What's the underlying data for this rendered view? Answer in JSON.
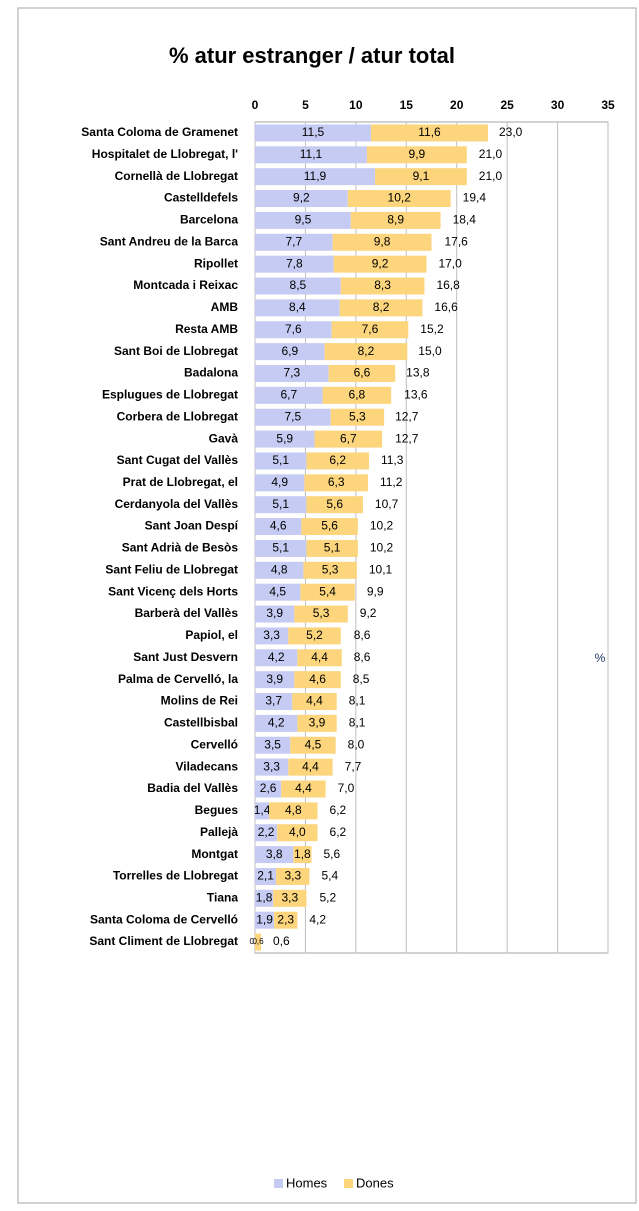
{
  "chart_data": {
    "type": "stacked-bar-horizontal",
    "title": "%  atur estranger / atur total",
    "axis_label": "%",
    "categories": [
      "Santa Coloma de Gramenet",
      "Hospitalet de Llobregat, l'",
      "Cornellà de Llobregat",
      "Castelldefels",
      "Barcelona",
      "Sant Andreu de la Barca",
      "Ripollet",
      "Montcada i Reixac",
      "AMB",
      "Resta AMB",
      "Sant Boi de Llobregat",
      "Badalona",
      "Esplugues de Llobregat",
      "Corbera de Llobregat",
      "Gavà",
      "Sant Cugat del Vallès",
      "Prat de Llobregat, el",
      "Cerdanyola del Vallès",
      "Sant Joan Despí",
      "Sant Adrià de Besòs",
      "Sant Feliu de Llobregat",
      "Sant Vicenç dels Horts",
      "Barberà del Vallès",
      "Papiol, el",
      "Sant Just Desvern",
      "Palma de Cervelló, la",
      "Molins de Rei",
      "Castellbisbal",
      "Cervelló",
      "Viladecans",
      "Badia del Vallès",
      "Begues",
      "Pallejà",
      "Montgat",
      "Torrelles de Llobregat",
      "Tiana",
      "Santa Coloma de Cervelló",
      "Sant Climent de Llobregat"
    ],
    "series": [
      {
        "name": "Homes",
        "color": "#c6cbf4",
        "values": [
          11.5,
          11.1,
          11.9,
          9.2,
          9.5,
          7.7,
          7.8,
          8.5,
          8.4,
          7.6,
          6.9,
          7.3,
          6.7,
          7.5,
          5.9,
          5.1,
          4.9,
          5.1,
          4.6,
          5.1,
          4.8,
          4.5,
          3.9,
          3.3,
          4.2,
          3.9,
          3.7,
          4.2,
          3.5,
          3.3,
          2.6,
          1.4,
          2.2,
          3.8,
          2.1,
          1.8,
          1.9,
          0.0
        ],
        "value_labels": [
          "11,5",
          "11,1",
          "11,9",
          "9,2",
          "9,5",
          "7,7",
          "7,8",
          "8,5",
          "8,4",
          "7,6",
          "6,9",
          "7,3",
          "6,7",
          "7,5",
          "5,9",
          "5,1",
          "4,9",
          "5,1",
          "4,6",
          "5,1",
          "4,8",
          "4,5",
          "3,9",
          "3,3",
          "4,2",
          "3,9",
          "3,7",
          "4,2",
          "3,5",
          "3,3",
          "2,6",
          "1,4",
          "2,2",
          "3,8",
          "2,1",
          "1,8",
          "1,9",
          "0,0"
        ]
      },
      {
        "name": "Dones",
        "color": "#fcd57c",
        "values": [
          11.6,
          9.9,
          9.1,
          10.2,
          8.9,
          9.8,
          9.2,
          8.3,
          8.2,
          7.6,
          8.2,
          6.6,
          6.8,
          5.3,
          6.7,
          6.2,
          6.3,
          5.6,
          5.6,
          5.1,
          5.3,
          5.4,
          5.3,
          5.2,
          4.4,
          4.6,
          4.4,
          3.9,
          4.5,
          4.4,
          4.4,
          4.8,
          4.0,
          1.8,
          3.3,
          3.3,
          2.3,
          0.6
        ],
        "value_labels": [
          "11,6",
          "9,9",
          "9,1",
          "10,2",
          "8,9",
          "9,8",
          "9,2",
          "8,3",
          "8,2",
          "7,6",
          "8,2",
          "6,6",
          "6,8",
          "5,3",
          "6,7",
          "6,2",
          "6,3",
          "5,6",
          "5,6",
          "5,1",
          "5,3",
          "5,4",
          "5,3",
          "5,2",
          "4,4",
          "4,6",
          "4,4",
          "3,9",
          "4,5",
          "4,4",
          "4,4",
          "4,8",
          "4,0",
          "1,8",
          "3,3",
          "3,3",
          "2,3",
          "0,6"
        ]
      }
    ],
    "totals": [
      23.0,
      21.0,
      21.0,
      19.4,
      18.4,
      17.6,
      17.0,
      16.8,
      16.6,
      15.2,
      15.0,
      13.8,
      13.6,
      12.7,
      12.7,
      11.3,
      11.2,
      10.7,
      10.2,
      10.2,
      10.1,
      9.9,
      9.2,
      8.6,
      8.6,
      8.5,
      8.1,
      8.1,
      8.0,
      7.7,
      7.0,
      6.2,
      6.2,
      5.6,
      5.4,
      5.2,
      4.2,
      0.6
    ],
    "total_labels": [
      "23,0",
      "21,0",
      "21,0",
      "19,4",
      "18,4",
      "17,6",
      "17,0",
      "16,8",
      "16,6",
      "15,2",
      "15,0",
      "13,8",
      "13,6",
      "12,7",
      "12,7",
      "11,3",
      "11,2",
      "10,7",
      "10,2",
      "10,2",
      "10,1",
      "9,9",
      "9,2",
      "8,6",
      "8,6",
      "8,5",
      "8,1",
      "8,1",
      "8,0",
      "7,7",
      "7,0",
      "6,2",
      "6,2",
      "5,6",
      "5,4",
      "5,2",
      "4,2",
      "0,6"
    ],
    "xlim": [
      0,
      35
    ],
    "xticks": [
      0,
      5,
      10,
      15,
      20,
      25,
      30,
      35
    ],
    "grid": true,
    "legend": "bottom"
  }
}
